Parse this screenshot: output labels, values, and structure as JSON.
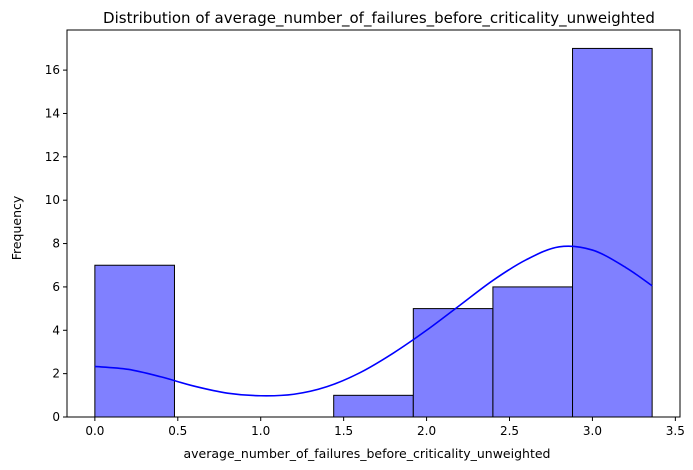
{
  "chart_data": {
    "type": "bar",
    "title": "Distribution of average_number_of_failures_before_criticality_unweighted",
    "xlabel": "average_number_of_failures_before_criticality_unweighted",
    "ylabel": "Frequency",
    "xlim": [
      -0.168,
      3.528
    ],
    "ylim": [
      0,
      17.85
    ],
    "xticks": [
      0.0,
      0.5,
      1.0,
      1.5,
      2.0,
      2.5,
      3.0,
      3.5
    ],
    "xtick_labels": [
      "0.0",
      "0.5",
      "1.0",
      "1.5",
      "2.0",
      "2.5",
      "3.0",
      "3.5"
    ],
    "yticks": [
      0,
      2,
      4,
      6,
      8,
      10,
      12,
      14,
      16
    ],
    "ytick_labels": [
      "0",
      "2",
      "4",
      "6",
      "8",
      "10",
      "12",
      "14",
      "16"
    ],
    "grid": false,
    "bins": [
      {
        "x0": 0.0,
        "x1": 0.48,
        "count": 7
      },
      {
        "x0": 0.48,
        "x1": 0.96,
        "count": 0
      },
      {
        "x0": 0.96,
        "x1": 1.44,
        "count": 0
      },
      {
        "x0": 1.44,
        "x1": 1.92,
        "count": 1
      },
      {
        "x0": 1.92,
        "x1": 2.4,
        "count": 5
      },
      {
        "x0": 2.4,
        "x1": 2.88,
        "count": 6
      },
      {
        "x0": 2.88,
        "x1": 3.36,
        "count": 17
      }
    ],
    "kde": {
      "x": [
        0.0,
        0.2,
        0.4,
        0.6,
        0.8,
        1.0,
        1.2,
        1.4,
        1.6,
        1.8,
        2.0,
        2.2,
        2.4,
        2.6,
        2.8,
        3.0,
        3.2,
        3.36
      ],
      "y": [
        2.33,
        2.2,
        1.85,
        1.42,
        1.1,
        0.98,
        1.05,
        1.4,
        2.05,
        2.95,
        4.0,
        5.15,
        6.3,
        7.25,
        7.85,
        7.7,
        6.9,
        6.05
      ]
    },
    "colors": {
      "bar_fill": "#8080ff",
      "bar_edge": "#000000",
      "kde_line": "#0000ff"
    }
  }
}
